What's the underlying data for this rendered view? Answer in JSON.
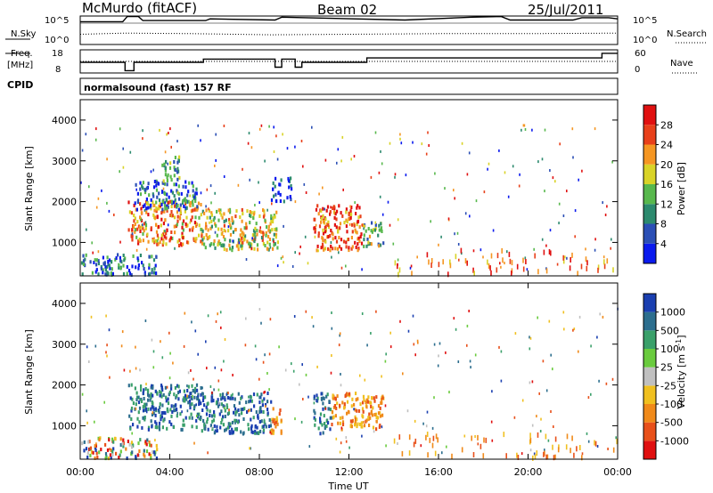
{
  "header": {
    "station": "McMurdo (fitACF)",
    "beam": "Beam 02",
    "date": "25/Jul/2011"
  },
  "noise_panel": {
    "left_label": "N.Sky",
    "right_label": "N.Search",
    "left_ticks": [
      "10^5",
      "10^0"
    ],
    "right_ticks": [
      "10^5",
      "10^0"
    ]
  },
  "freq_panel": {
    "left_label_line1": "Freq.",
    "left_label_line2": "[MHz]",
    "right_label": "Nave",
    "left_ticks": [
      "18",
      "8"
    ],
    "right_ticks": [
      "60",
      "0"
    ],
    "cpid_label": "CPID",
    "cpid_text": "normalsound (fast) 157 RF"
  },
  "chart_data": [
    {
      "type": "line",
      "title": "",
      "series": [
        {
          "name": "N.Sky",
          "style": "solid",
          "x": [
            0,
            1.9,
            2.1,
            2.6,
            2.8,
            5.6,
            5.8,
            8.7,
            9.0,
            14.5,
            17.5,
            18.8,
            19.2,
            22.0,
            22.4,
            23.6,
            24.0
          ],
          "log10_values": [
            4.0,
            4.0,
            4.9,
            4.9,
            4.2,
            4.2,
            4.5,
            4.3,
            4.8,
            4.3,
            4.8,
            4.9,
            4.3,
            4.3,
            4.7,
            4.7,
            4.5
          ]
        },
        {
          "name": "N.Search",
          "style": "dotted",
          "x": [
            0,
            2.0,
            5.0,
            8.5,
            12.0,
            16.0,
            20.0,
            24.0
          ],
          "log10_values": [
            1.8,
            2.0,
            1.9,
            1.7,
            1.8,
            1.9,
            1.9,
            2.0
          ]
        }
      ],
      "xlim": [
        0,
        24
      ],
      "ylim_log10": [
        0,
        5
      ]
    },
    {
      "type": "line",
      "title": "",
      "series": [
        {
          "name": "Freq.",
          "style": "solid",
          "x": [
            0,
            2.0,
            2.0,
            2.4,
            2.4,
            5.5,
            5.5,
            8.7,
            8.7,
            9.0,
            9.0,
            9.6,
            9.6,
            9.9,
            9.9,
            12.8,
            12.8,
            23.3,
            23.3,
            24.0
          ],
          "values": [
            12.6,
            12.6,
            9.0,
            9.0,
            12.6,
            12.6,
            14.0,
            14.0,
            10.5,
            10.5,
            14.0,
            14.0,
            10.5,
            10.5,
            12.6,
            12.6,
            14.5,
            14.5,
            16.5,
            16.5
          ]
        },
        {
          "name": "Nave",
          "style": "dotted",
          "x": [
            0,
            24
          ],
          "values": [
            30,
            30
          ]
        }
      ],
      "xlim": [
        0,
        24
      ],
      "ylim": [
        8,
        18
      ],
      "y2lim": [
        0,
        60
      ]
    },
    {
      "type": "heatmap",
      "title": "",
      "ylabel": "Slant Range [km]",
      "xlim": [
        0,
        24
      ],
      "ylim": [
        180,
        4500
      ],
      "yticks": [
        "1000",
        "2000",
        "3000",
        "4000"
      ],
      "colorbar_label": "Power [dB]",
      "colorbar_ticks": [
        "4",
        "8",
        "12",
        "16",
        "20",
        "24",
        "28"
      ],
      "colorbar_colors": [
        "#0a1aee",
        "#2b4fb5",
        "#2c8a6e",
        "#58b84d",
        "#d9d327",
        "#f59622",
        "#e8401a",
        "#e01010"
      ],
      "clusters": [
        {
          "t0": 2.1,
          "t1": 5.4,
          "r0": 900,
          "r1": 2000,
          "level": 0.72
        },
        {
          "t0": 5.4,
          "t1": 8.8,
          "r0": 800,
          "r1": 1800,
          "level": 0.55
        },
        {
          "t0": 10.4,
          "t1": 12.6,
          "r0": 800,
          "r1": 1900,
          "level": 0.82
        },
        {
          "t0": 12.6,
          "t1": 13.5,
          "r0": 900,
          "r1": 1500,
          "level": 0.45
        },
        {
          "t0": 0.0,
          "t1": 3.4,
          "r0": 200,
          "r1": 700,
          "level": 0.25
        },
        {
          "t0": 2.4,
          "t1": 5.2,
          "r0": 1800,
          "r1": 2500,
          "level": 0.25
        },
        {
          "t0": 3.6,
          "t1": 4.4,
          "r0": 2500,
          "r1": 3100,
          "level": 0.35
        },
        {
          "t0": 8.5,
          "t1": 9.4,
          "r0": 2000,
          "r1": 2600,
          "level": 0.15
        }
      ]
    },
    {
      "type": "heatmap",
      "title": "",
      "xlabel": "Time UT",
      "ylabel": "Slant Range [km]",
      "xlim": [
        0,
        24
      ],
      "ylim": [
        180,
        4500
      ],
      "xticks": [
        "00:00",
        "04:00",
        "08:00",
        "12:00",
        "16:00",
        "20:00",
        "00:00"
      ],
      "yticks": [
        "1000",
        "2000",
        "3000",
        "4000"
      ],
      "colorbar_label": "Velocity [m s^-1]",
      "colorbar_ticks": [
        "1000",
        "500",
        "100",
        "25",
        "-25",
        "-100",
        "-500",
        "-1000"
      ],
      "colorbar_colors": [
        "#1a3fb0",
        "#2c6e8e",
        "#3aa06a",
        "#6acb3e",
        "#c0c0c0",
        "#f0c020",
        "#f08a1a",
        "#e8501a",
        "#e01010"
      ],
      "clusters": [
        {
          "t0": 2.1,
          "t1": 5.4,
          "r0": 900,
          "r1": 2000,
          "velocity_class": "positive"
        },
        {
          "t0": 5.4,
          "t1": 8.5,
          "r0": 800,
          "r1": 1800,
          "velocity_class": "positive"
        },
        {
          "t0": 8.5,
          "t1": 9.0,
          "r0": 800,
          "r1": 1500,
          "velocity_class": "negative"
        },
        {
          "t0": 10.4,
          "t1": 11.2,
          "r0": 800,
          "r1": 1800,
          "velocity_class": "positive"
        },
        {
          "t0": 11.2,
          "t1": 13.5,
          "r0": 900,
          "r1": 1800,
          "velocity_class": "negative"
        },
        {
          "t0": 0.0,
          "t1": 3.4,
          "r0": 200,
          "r1": 700,
          "velocity_class": "mixed"
        }
      ]
    }
  ]
}
